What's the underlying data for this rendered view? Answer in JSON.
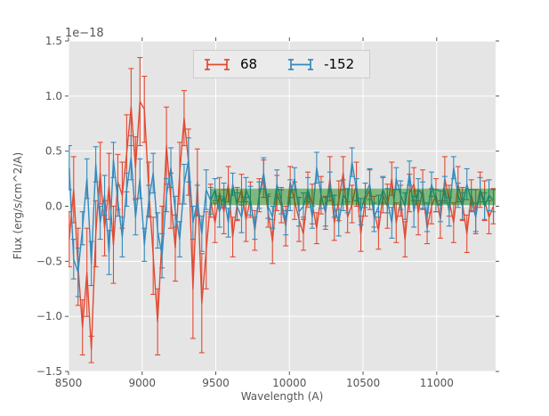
{
  "chart_data": {
    "type": "errorbar-line",
    "title": "",
    "xlabel": "Wavelength (A)",
    "ylabel": "Flux (erg/s/cm^2/A)",
    "y_offset_text": "1e−18",
    "y_scale_factor": "1e-18",
    "xlim": [
      8500,
      11400
    ],
    "ylim": [
      -1.5,
      1.5
    ],
    "x_ticks": [
      8500,
      9000,
      9500,
      10000,
      10500,
      11000
    ],
    "x_tick_labels": [
      "8500",
      "9000",
      "9500",
      "10000",
      "10500",
      "11000"
    ],
    "y_ticks": [
      -1.5,
      -1.0,
      -0.5,
      0.0,
      0.5,
      1.0,
      1.5
    ],
    "y_tick_labels": [
      "−1.5",
      "−1.0",
      "−0.5",
      "0.0",
      "0.5",
      "1.0",
      "1.5"
    ],
    "grid": true,
    "grid_color": "#ffffff",
    "plot_bg": "#e5e5e5",
    "tick_color": "#555555",
    "label_color": "#555555",
    "legend": {
      "position": "upper center",
      "ncol": 2
    },
    "band": {
      "description": "green reference band (axhspan)",
      "x_start": 9465,
      "x_end": 11400,
      "y_min": 0.01,
      "y_max": 0.16,
      "color": "#008000",
      "alpha": 0.45
    },
    "x": [
      8505,
      8535,
      8565,
      8595,
      8625,
      8655,
      8685,
      8715,
      8745,
      8775,
      8805,
      8835,
      8865,
      8895,
      8925,
      8955,
      8985,
      9015,
      9045,
      9075,
      9105,
      9135,
      9165,
      9195,
      9225,
      9255,
      9285,
      9315,
      9345,
      9375,
      9405,
      9435,
      9465,
      9495,
      9525,
      9555,
      9585,
      9615,
      9645,
      9675,
      9705,
      9735,
      9765,
      9795,
      9825,
      9855,
      9885,
      9915,
      9945,
      9975,
      10005,
      10035,
      10065,
      10095,
      10125,
      10155,
      10185,
      10215,
      10245,
      10275,
      10305,
      10335,
      10365,
      10395,
      10425,
      10455,
      10485,
      10515,
      10545,
      10575,
      10605,
      10635,
      10665,
      10695,
      10725,
      10755,
      10785,
      10815,
      10845,
      10875,
      10905,
      10935,
      10965,
      10995,
      11025,
      11055,
      11085,
      11115,
      11145,
      11175,
      11205,
      11235,
      11265,
      11295,
      11325,
      11355,
      11385
    ],
    "series": [
      {
        "name": "68",
        "color": "#e24a33",
        "y": [
          -0.3,
          0.15,
          -0.55,
          -1.1,
          -0.6,
          -1.3,
          -0.25,
          0.3,
          -0.2,
          0.18,
          -0.35,
          0.22,
          0.1,
          0.48,
          0.9,
          0.35,
          0.95,
          0.88,
          0.15,
          -0.45,
          -1.05,
          -0.28,
          0.55,
          0.05,
          -0.38,
          0.3,
          0.8,
          0.4,
          -0.75,
          0.22,
          -0.88,
          -0.4,
          0.05,
          -0.15,
          0.12,
          -0.05,
          0.2,
          -0.28,
          0.02,
          0.15,
          -0.12,
          0.06,
          -0.22,
          0.1,
          0.25,
          -0.05,
          -0.32,
          0.12,
          0.0,
          -0.18,
          0.22,
          0.05,
          -0.12,
          -0.25,
          0.15,
          0.02,
          -0.2,
          0.1,
          -0.06,
          0.25,
          -0.15,
          0.05,
          0.3,
          -0.1,
          0.02,
          0.2,
          -0.25,
          0.06,
          0.15,
          -0.05,
          -0.22,
          0.1,
          0.0,
          0.25,
          -0.15,
          0.05,
          -0.3,
          0.12,
          0.2,
          -0.06,
          0.15,
          -0.2,
          0.0,
          0.1,
          -0.12,
          0.25,
          0.05,
          -0.15,
          0.2,
          0.02,
          -0.25,
          0.1,
          -0.05,
          0.15,
          0.05,
          -0.1,
          0.0
        ],
        "yerr": [
          0.25,
          0.3,
          0.35,
          0.25,
          0.4,
          0.12,
          0.3,
          0.28,
          0.25,
          0.3,
          0.35,
          0.25,
          0.3,
          0.35,
          0.35,
          0.28,
          0.4,
          0.3,
          0.25,
          0.35,
          0.3,
          0.28,
          0.35,
          0.25,
          0.3,
          0.28,
          0.25,
          0.3,
          0.45,
          0.3,
          0.45,
          0.35,
          0.15,
          0.18,
          0.14,
          0.2,
          0.16,
          0.18,
          0.15,
          0.14,
          0.2,
          0.16,
          0.18,
          0.15,
          0.17,
          0.14,
          0.2,
          0.16,
          0.15,
          0.18,
          0.14,
          0.17,
          0.2,
          0.15,
          0.16,
          0.18,
          0.14,
          0.17,
          0.15,
          0.2,
          0.16,
          0.18,
          0.15,
          0.14,
          0.17,
          0.2,
          0.16,
          0.15,
          0.18,
          0.14,
          0.17,
          0.16,
          0.2,
          0.15,
          0.18,
          0.14,
          0.16,
          0.17,
          0.15,
          0.2,
          0.18,
          0.14,
          0.16,
          0.15,
          0.17,
          0.2,
          0.14,
          0.18,
          0.16,
          0.15,
          0.17,
          0.14,
          0.2,
          0.16,
          0.18,
          0.15,
          0.16
        ]
      },
      {
        "name": "-152",
        "color": "#348abd",
        "y": [
          0.35,
          -0.48,
          -0.6,
          -0.2,
          0.25,
          -0.52,
          0.38,
          -0.15,
          0.1,
          -0.42,
          0.42,
          0.05,
          -0.28,
          0.15,
          0.44,
          -0.1,
          0.25,
          -0.35,
          0.05,
          0.3,
          -0.22,
          -0.45,
          0.1,
          0.35,
          -0.05,
          -0.3,
          0.2,
          0.42,
          -0.15,
          0.05,
          -0.25,
          0.15,
          0.05,
          0.15,
          -0.05,
          0.1,
          -0.15,
          0.2,
          0.0,
          -0.1,
          0.15,
          0.05,
          -0.2,
          0.1,
          0.3,
          0.0,
          -0.1,
          0.2,
          0.05,
          -0.15,
          0.1,
          0.25,
          -0.05,
          0.0,
          0.15,
          -0.1,
          0.35,
          0.1,
          -0.05,
          0.2,
          0.0,
          -0.15,
          0.1,
          0.05,
          0.4,
          0.15,
          -0.05,
          0.1,
          0.2,
          -0.1,
          0.0,
          0.15,
          0.05,
          -0.15,
          0.25,
          0.1,
          0.0,
          0.3,
          -0.05,
          0.15,
          0.1,
          -0.1,
          0.2,
          0.05,
          0.0,
          0.15,
          -0.05,
          0.35,
          0.1,
          0.0,
          0.2,
          0.05,
          -0.1,
          0.15,
          0.0,
          0.1,
          0.05
        ],
        "yerr": [
          0.2,
          0.18,
          0.22,
          0.15,
          0.18,
          0.2,
          0.16,
          0.15,
          0.18,
          0.2,
          0.16,
          0.14,
          0.18,
          0.15,
          0.2,
          0.16,
          0.18,
          0.15,
          0.14,
          0.18,
          0.16,
          0.2,
          0.15,
          0.18,
          0.14,
          0.16,
          0.18,
          0.2,
          0.15,
          0.14,
          0.16,
          0.18,
          0.12,
          0.1,
          0.14,
          0.11,
          0.13,
          0.1,
          0.12,
          0.14,
          0.11,
          0.13,
          0.1,
          0.12,
          0.14,
          0.11,
          0.1,
          0.13,
          0.12,
          0.11,
          0.14,
          0.1,
          0.13,
          0.12,
          0.11,
          0.1,
          0.14,
          0.12,
          0.13,
          0.11,
          0.1,
          0.12,
          0.14,
          0.11,
          0.13,
          0.1,
          0.12,
          0.11,
          0.14,
          0.13,
          0.1,
          0.12,
          0.11,
          0.14,
          0.1,
          0.13,
          0.12,
          0.11,
          0.14,
          0.1,
          0.12,
          0.13,
          0.11,
          0.1,
          0.14,
          0.12,
          0.13,
          0.1,
          0.11,
          0.12,
          0.14,
          0.1,
          0.13,
          0.11,
          0.12,
          0.14,
          0.1
        ]
      }
    ]
  }
}
